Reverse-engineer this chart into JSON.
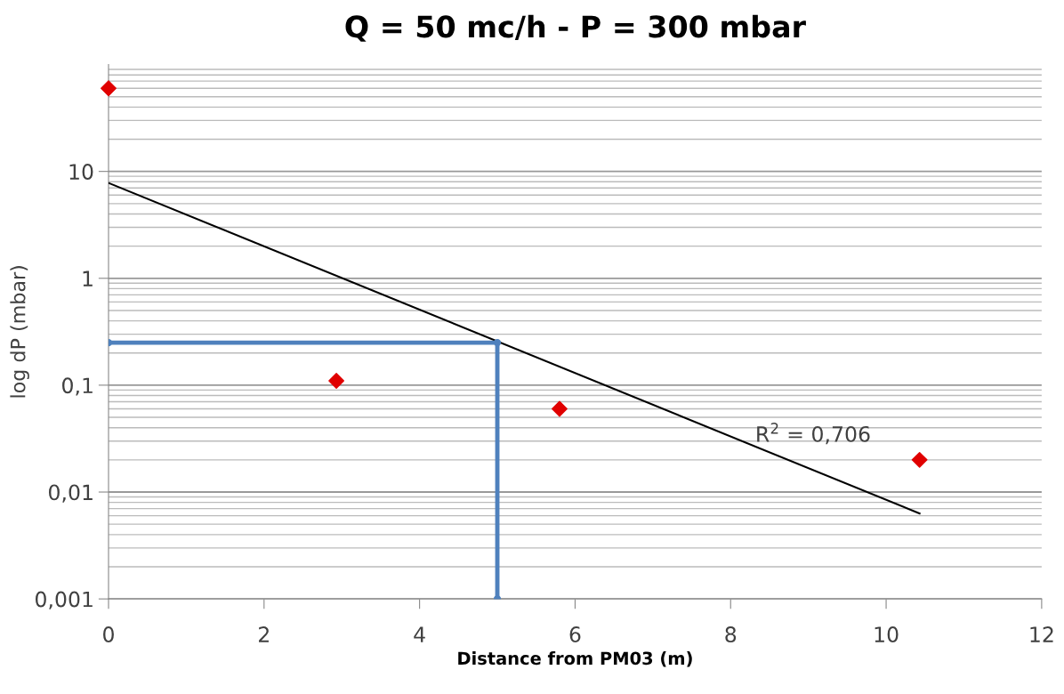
{
  "chart_data": {
    "type": "scatter",
    "title": "Q = 50 mc/h - P = 300 mbar",
    "xlabel": "Distance from PM03 (m)",
    "ylabel": "log dP (mbar)",
    "log": "y",
    "grid": "y",
    "xlim": [
      0,
      12
    ],
    "xticks": [
      0,
      2,
      4,
      6,
      8,
      10,
      12
    ],
    "ylim": [
      0.001,
      100
    ],
    "yticks": [
      {
        "value": 0.001,
        "label": "0,001"
      },
      {
        "value": 0.01,
        "label": "0,01"
      },
      {
        "value": 0.1,
        "label": "0,1"
      },
      1,
      10
    ],
    "series": [
      {
        "type": "line",
        "color": "#000000",
        "marker": "none",
        "line_style": "solid",
        "x": [
          0,
          10.43
        ],
        "values": [
          7.8,
          0.0063
        ]
      },
      {
        "type": "line",
        "color": "#4f81bd",
        "marker": "circle",
        "line_style": "solid",
        "x": [
          0,
          5,
          5
        ],
        "values": [
          0.25,
          0.25,
          0.001
        ]
      },
      {
        "color": "#e00000",
        "marker": "diamond",
        "x": [
          0,
          2.93,
          5.8,
          10.43
        ],
        "values": [
          60,
          0.11,
          0.06,
          0.02
        ]
      }
    ],
    "annotations": [
      "R$^{2}$ = 0,706"
    ]
  }
}
